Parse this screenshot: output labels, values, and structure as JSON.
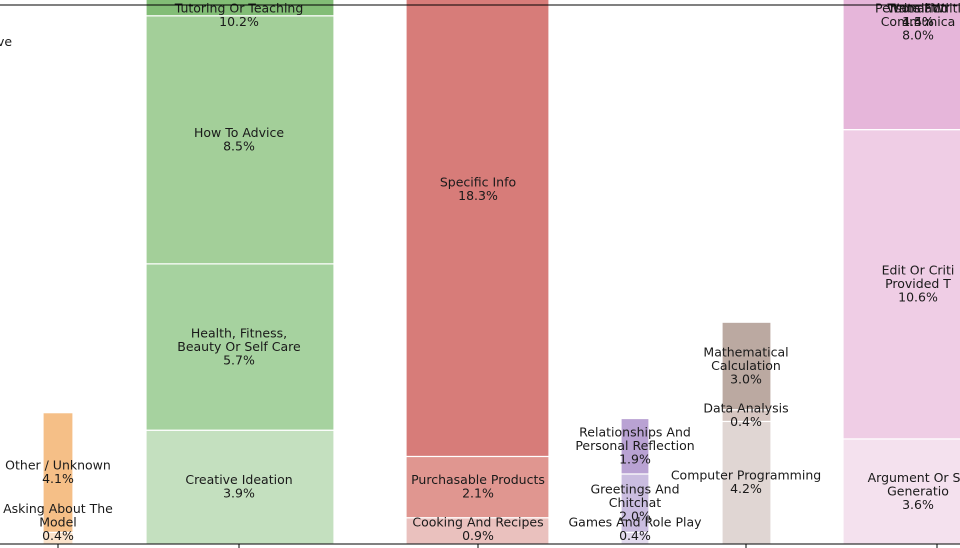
{
  "chart_data": {
    "type": "bar",
    "stacked": true,
    "total_units": 100.0,
    "categories": [
      "c0",
      "c1",
      "c2",
      "c3",
      "c4",
      "c5",
      "c6"
    ],
    "columns": [
      {
        "category": "c0",
        "segments": [
          {
            "lines": [
              "ve"
            ],
            "value": null,
            "color": "#ffffff"
          }
        ]
      },
      {
        "category": "c1",
        "segments": [
          {
            "lines": [
              "Asking About The",
              "Model"
            ],
            "value_label": "0.4%",
            "value": 0.4,
            "color": "#fbe3cb"
          },
          {
            "lines": [
              "Other / Unknown"
            ],
            "value_label": "4.1%",
            "value": 4.1,
            "color": "#f5bf87"
          }
        ]
      },
      {
        "category": "c2",
        "segments": [
          {
            "lines": [
              "Creative Ideation"
            ],
            "value_label": "3.9%",
            "value": 3.9,
            "color": "#c4e0bf"
          },
          {
            "lines": [
              "Health, Fitness,",
              "Beauty Or Self Care"
            ],
            "value_label": "5.7%",
            "value": 5.7,
            "color": "#a6d29f"
          },
          {
            "lines": [
              "How To Advice"
            ],
            "value_label": "8.5%",
            "value": 8.5,
            "color": "#a3cf99"
          },
          {
            "lines": [
              "Tutoring Or Teaching"
            ],
            "value_label": "10.2%",
            "value": 10.2,
            "color": "#82bd76"
          }
        ]
      },
      {
        "category": "c3",
        "segments": [
          {
            "lines": [
              "Cooking And Recipes"
            ],
            "value_label": "0.9%",
            "value": 0.9,
            "color": "#eac1be"
          },
          {
            "lines": [
              "Purchasable Products"
            ],
            "value_label": "2.1%",
            "value": 2.1,
            "color": "#e09690"
          },
          {
            "lines": [
              "Specific Info"
            ],
            "value_label": "18.3%",
            "value": 18.3,
            "color": "#d77c79"
          }
        ]
      },
      {
        "category": "c4",
        "segments": [
          {
            "lines": [
              "Games And Role Play"
            ],
            "value_label": "0.4%",
            "value": 0.4,
            "color": "#e3dbee"
          },
          {
            "lines": [
              "Greetings And",
              "Chitchat"
            ],
            "value_label": "2.0%",
            "value": 2.0,
            "color": "#cabde0"
          },
          {
            "lines": [
              "Relationships And",
              "Personal Reflection"
            ],
            "value_label": "1.9%",
            "value": 1.9,
            "color": "#b9a2d3"
          }
        ]
      },
      {
        "category": "c5",
        "segments": [
          {
            "lines": [
              "Computer Programming"
            ],
            "value_label": "4.2%",
            "value": 4.2,
            "color": "#e0d6d3"
          },
          {
            "lines": [
              "Data Analysis"
            ],
            "value_label": "0.4%",
            "value": 0.4,
            "color": "#d6c6c1"
          },
          {
            "lines": [
              "Mathematical",
              "Calculation"
            ],
            "value_label": "3.0%",
            "value": 3.0,
            "color": "#bba9a1"
          }
        ]
      },
      {
        "category": "c6",
        "segments": [
          {
            "lines": [
              "Argument Or Su",
              "Generatio"
            ],
            "value_label": "3.6%",
            "value": 3.6,
            "color": "#f4e1ee"
          },
          {
            "lines": [
              "Edit Or Criti",
              "Provided T"
            ],
            "value_label": "10.6%",
            "value": 10.6,
            "color": "#efcde5"
          },
          {
            "lines": [
              "Personal Writi",
              "Communica"
            ],
            "value_label": "8.0%",
            "value": 8.0,
            "color": "#e6b6da"
          },
          {
            "lines": [
              "Translatio"
            ],
            "value_label": "4.5%",
            "value": 4.5,
            "color": "#e2a9d4"
          },
          {
            "lines": [
              "Write Ficti"
            ],
            "value_label": "1.4%",
            "value": 1.4,
            "color": "#df9fd1"
          }
        ]
      }
    ],
    "grid": false,
    "legend": "none",
    "title": "",
    "xlabel": "",
    "ylabel": ""
  }
}
